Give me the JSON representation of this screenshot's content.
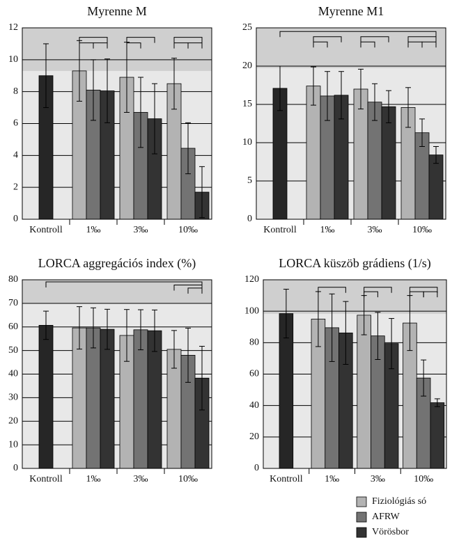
{
  "chart_data": [
    {
      "type": "bar",
      "title": "Myrenne M",
      "categories": [
        "Kontroll",
        "1‰",
        "3‰",
        "10‰"
      ],
      "control": {
        "value": 9,
        "error": 2,
        "color": "#262626"
      },
      "series": [
        {
          "name": "Fiziológiás só",
          "color": "#b3b3b3",
          "values": [
            null,
            9.3,
            8.9,
            8.5
          ],
          "errors": [
            null,
            1.9,
            2.2,
            1.6
          ]
        },
        {
          "name": "AFRW",
          "color": "#737373",
          "values": [
            null,
            8.1,
            6.7,
            4.45
          ],
          "errors": [
            null,
            1.9,
            2.2,
            1.6
          ]
        },
        {
          "name": "Vörösbor",
          "color": "#333333",
          "values": [
            null,
            8.05,
            6.3,
            1.7
          ],
          "errors": [
            null,
            2,
            2.2,
            1.6
          ]
        }
      ],
      "ylim": [
        0,
        12
      ],
      "yticks": [
        0,
        2,
        4,
        6,
        8,
        10,
        12
      ],
      "grid": true
    },
    {
      "type": "bar",
      "title": "Myrenne M1",
      "categories": [
        "Kontroll",
        "1‰",
        "3‰",
        "10‰"
      ],
      "control": {
        "value": 17.1,
        "error": 2.9,
        "color": "#262626"
      },
      "series": [
        {
          "name": "Fiziológiás só",
          "color": "#b3b3b3",
          "values": [
            null,
            17.4,
            17.0,
            14.6
          ],
          "errors": [
            null,
            2.5,
            2.6,
            2.6
          ]
        },
        {
          "name": "AFRW",
          "color": "#737373",
          "values": [
            null,
            16.1,
            15.3,
            11.3
          ],
          "errors": [
            null,
            3.2,
            2.4,
            1.8
          ]
        },
        {
          "name": "Vörösbor",
          "color": "#333333",
          "values": [
            null,
            16.2,
            14.7,
            8.4
          ],
          "errors": [
            null,
            3.1,
            2.1,
            1.1
          ]
        }
      ],
      "ylim": [
        0,
        25
      ],
      "yticks": [
        0,
        5,
        10,
        15,
        20,
        25
      ],
      "grid": true
    },
    {
      "type": "bar",
      "title": "LORCA aggregációs index (%)",
      "categories": [
        "Kontroll",
        "1‰",
        "3‰",
        "10‰"
      ],
      "control": {
        "value": 60.7,
        "error": 6,
        "color": "#262626"
      },
      "series": [
        {
          "name": "Fiziológiás só",
          "color": "#b3b3b3",
          "values": [
            null,
            59.6,
            56.4,
            50.5
          ],
          "errors": [
            null,
            9,
            11,
            8
          ]
        },
        {
          "name": "AFRW",
          "color": "#737373",
          "values": [
            null,
            59.6,
            58.8,
            48
          ],
          "errors": [
            null,
            8.5,
            8.5,
            11.5
          ]
        },
        {
          "name": "Vörösbor",
          "color": "#333333",
          "values": [
            null,
            59,
            58.4,
            38.3
          ],
          "errors": [
            null,
            8.5,
            8.8,
            13.5
          ]
        }
      ],
      "ylim": [
        0,
        80
      ],
      "yticks": [
        0,
        10,
        20,
        30,
        40,
        50,
        60,
        70,
        80
      ],
      "grid": true
    },
    {
      "type": "bar",
      "title": "LORCA küszöb grádiens (1/s)",
      "categories": [
        "Kontroll",
        "1‰",
        "3‰",
        "10‰"
      ],
      "control": {
        "value": 98.5,
        "error": 15.5,
        "color": "#262626"
      },
      "series": [
        {
          "name": "Fiziológiás só",
          "color": "#b3b3b3",
          "values": [
            null,
            95,
            97.5,
            92.5
          ],
          "errors": [
            null,
            17.5,
            12.5,
            17.5
          ]
        },
        {
          "name": "AFRW",
          "color": "#737373",
          "values": [
            null,
            89.5,
            84.3,
            57.5
          ],
          "errors": [
            null,
            21.5,
            15,
            11.5
          ]
        },
        {
          "name": "Vörösbor",
          "color": "#333333",
          "values": [
            null,
            86.2,
            79.4,
            41.8
          ],
          "errors": [
            null,
            20,
            16,
            2.5
          ]
        }
      ],
      "ylim": [
        0,
        120
      ],
      "yticks": [
        0,
        20,
        40,
        60,
        80,
        100,
        120
      ],
      "grid": true
    }
  ]
}
